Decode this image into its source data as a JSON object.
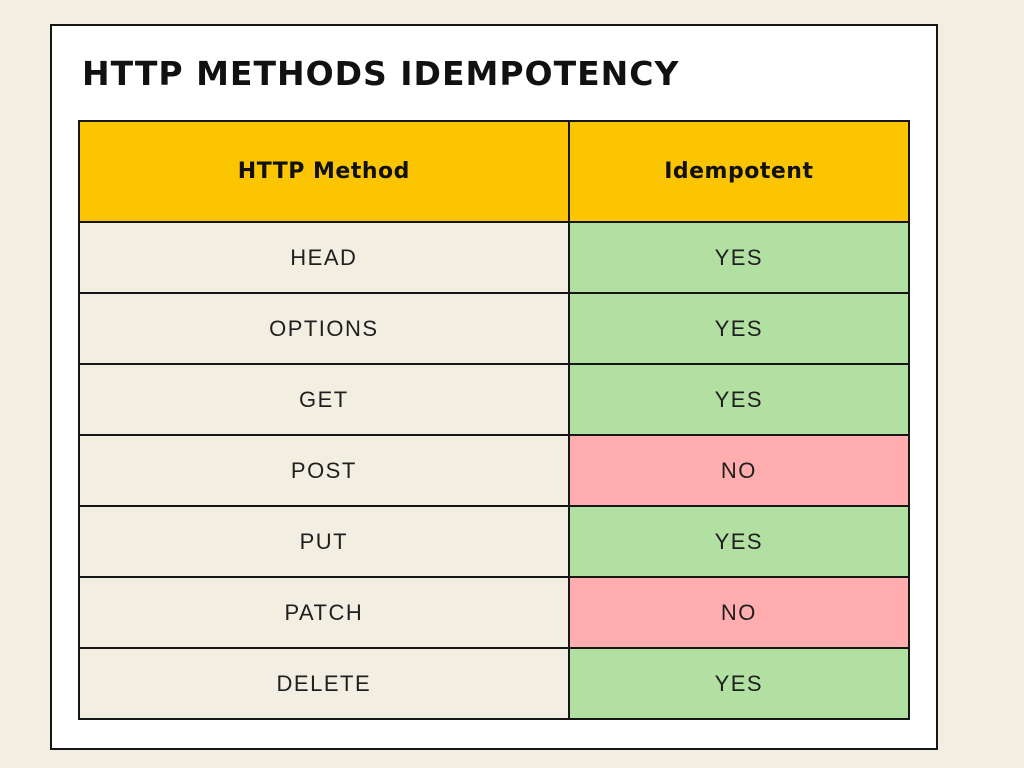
{
  "title": "HTTP METHODS IDEMPOTENCY",
  "table": {
    "headers": [
      "HTTP Method",
      "Idempotent"
    ],
    "rows": [
      {
        "method": "HEAD",
        "idempotent": "YES"
      },
      {
        "method": "OPTIONS",
        "idempotent": "YES"
      },
      {
        "method": "GET",
        "idempotent": "YES"
      },
      {
        "method": "POST",
        "idempotent": "NO"
      },
      {
        "method": "PUT",
        "idempotent": "YES"
      },
      {
        "method": "PATCH",
        "idempotent": "NO"
      },
      {
        "method": "DELETE",
        "idempotent": "YES"
      }
    ]
  },
  "colors": {
    "background": "#f2efe2",
    "card": "#ffffff",
    "border": "#161616",
    "header_yellow": "#fcc502",
    "yes_green": "#b2dfa2",
    "no_pink": "#ffadaf",
    "method_cell": "#f2efe2",
    "text": "#111111"
  },
  "chart_data": {
    "type": "table",
    "title": "HTTP METHODS IDEMPOTENCY",
    "columns": [
      "HTTP Method",
      "Idempotent"
    ],
    "rows": [
      [
        "HEAD",
        "YES"
      ],
      [
        "OPTIONS",
        "YES"
      ],
      [
        "GET",
        "YES"
      ],
      [
        "POST",
        "NO"
      ],
      [
        "PUT",
        "YES"
      ],
      [
        "PATCH",
        "NO"
      ],
      [
        "DELETE",
        "YES"
      ]
    ],
    "legend": "green cell = idempotent (YES), pink cell = not idempotent (NO)"
  }
}
